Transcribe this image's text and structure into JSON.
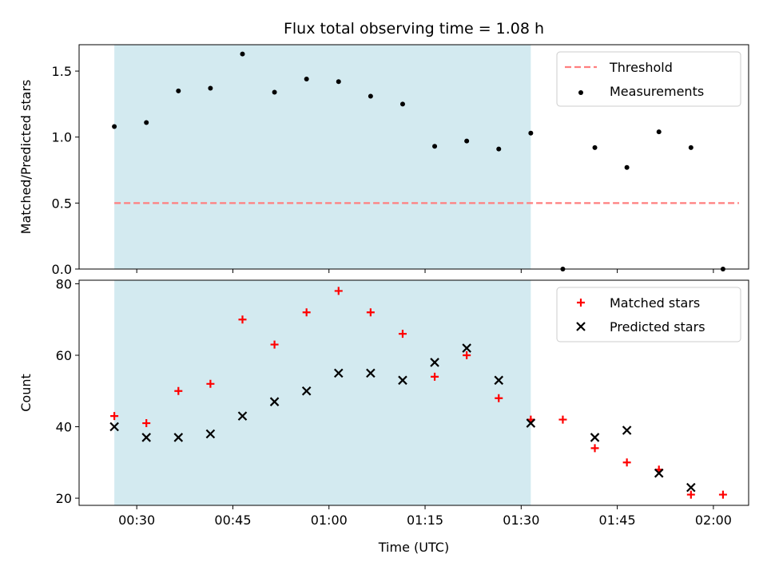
{
  "chart_data": {
    "title": "Flux total observing time = 1.08 h",
    "xlabel": "Time (UTC)",
    "x_ticks": [
      "00:30",
      "00:45",
      "01:00",
      "01:15",
      "01:30",
      "01:45",
      "02:00"
    ],
    "x_tick_minutes": [
      30,
      45,
      60,
      75,
      90,
      105,
      120
    ],
    "xlim_minutes": [
      21.0,
      125.5
    ],
    "shaded_span_minutes": [
      26.5,
      91.5
    ],
    "shade_color": "#d3eaf0",
    "panels": [
      {
        "type": "scatter",
        "ylabel": "Matched/Predicted stars",
        "ylim": [
          0,
          1.7
        ],
        "y_ticks": [
          0.0,
          0.5,
          1.0,
          1.5
        ],
        "y_tick_labels": [
          "0.0",
          "0.5",
          "1.0",
          "1.5"
        ],
        "legend_position": "top-right",
        "series": [
          {
            "name": "Threshold",
            "style": "dashed-line",
            "color": "#ff7f7f",
            "x": [
              26.5,
              124.0
            ],
            "y": [
              0.5,
              0.5
            ]
          },
          {
            "name": "Measurements",
            "style": "dot",
            "color": "#000000",
            "x": [
              26.5,
              31.5,
              36.5,
              41.5,
              46.5,
              51.5,
              56.5,
              61.5,
              66.5,
              71.5,
              76.5,
              81.5,
              86.5,
              91.5,
              96.5,
              101.5,
              106.5,
              111.5,
              116.5,
              121.5
            ],
            "y": [
              1.08,
              1.11,
              1.35,
              1.37,
              1.63,
              1.34,
              1.44,
              1.42,
              1.31,
              1.25,
              0.93,
              0.97,
              0.91,
              1.03,
              0.0,
              0.92,
              0.77,
              1.04,
              0.92,
              0.0
            ]
          }
        ]
      },
      {
        "type": "scatter",
        "ylabel": "Count",
        "ylim": [
          18,
          81
        ],
        "y_ticks": [
          20,
          40,
          60,
          80
        ],
        "y_tick_labels": [
          "20",
          "40",
          "60",
          "80"
        ],
        "legend_position": "top-right",
        "series": [
          {
            "name": "Matched stars",
            "marker": "plus",
            "color": "#ff0000",
            "x": [
              26.5,
              31.5,
              36.5,
              41.5,
              46.5,
              51.5,
              56.5,
              61.5,
              66.5,
              71.5,
              76.5,
              81.5,
              86.5,
              91.5,
              96.5,
              101.5,
              106.5,
              111.5,
              116.5,
              121.5
            ],
            "y": [
              43,
              41,
              50,
              52,
              70,
              63,
              72,
              78,
              72,
              66,
              54,
              60,
              48,
              42,
              42,
              34,
              30,
              28,
              21,
              21
            ]
          },
          {
            "name": "Predicted stars",
            "marker": "x",
            "color": "#000000",
            "x": [
              26.5,
              31.5,
              36.5,
              41.5,
              46.5,
              51.5,
              56.5,
              61.5,
              66.5,
              71.5,
              76.5,
              81.5,
              86.5,
              91.5,
              101.5,
              106.5,
              111.5,
              116.5
            ],
            "y": [
              40,
              37,
              37,
              38,
              43,
              47,
              50,
              55,
              55,
              53,
              58,
              62,
              53,
              41,
              37,
              39,
              27,
              23
            ]
          }
        ]
      }
    ]
  }
}
